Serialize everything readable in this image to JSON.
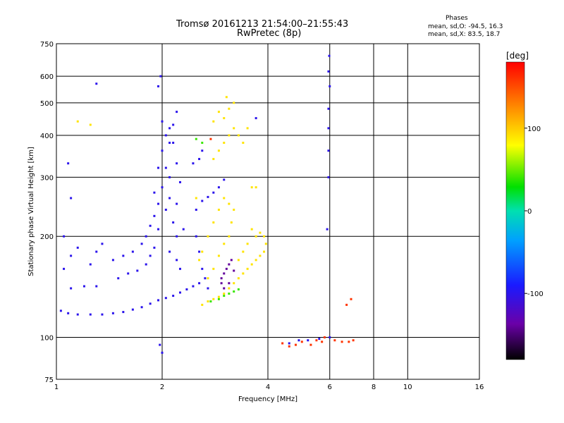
{
  "header": {
    "title_line1": "Tromsø 20161213 21:54:00–21:55:43",
    "title_line2": "RwPretec (8p)",
    "phases_title": "Phases",
    "stat_o": "mean, sd,O: -94.5, 16.3",
    "stat_x": "mean, sd,X:  83.5, 18.7"
  },
  "chart_data": {
    "type": "scatter",
    "title": "Tromsø 20161213 21:54:00–21:55:43",
    "subtitle": "RwPretec (8p)",
    "xlabel": "Frequency [MHz]",
    "ylabel": "Stationary phase Virtual Height [km]",
    "x_scale": "log",
    "y_scale": "log",
    "xlim": [
      1,
      16
    ],
    "ylim": [
      75,
      750
    ],
    "x_ticks": [
      1,
      2,
      4,
      6,
      8,
      10,
      16
    ],
    "x_tick_labels": [
      "1",
      "2",
      "4",
      "6",
      "8",
      "10",
      "16"
    ],
    "y_ticks": [
      75,
      100,
      200,
      300,
      400,
      500,
      600,
      750
    ],
    "y_tick_labels": [
      "75",
      "100",
      "200",
      "300",
      "400",
      "500",
      "600",
      "750"
    ],
    "grid": true,
    "colorbar": {
      "label": "[deg]",
      "range": [
        -180,
        180
      ],
      "ticks": [
        100,
        0,
        -100
      ],
      "tick_labels": [
        "100",
        "0",
        "-100"
      ]
    },
    "series": [
      {
        "phase_deg": -100,
        "points": [
          [
            1.03,
            120
          ],
          [
            1.08,
            118
          ],
          [
            1.15,
            117
          ],
          [
            1.25,
            117
          ],
          [
            1.35,
            117
          ],
          [
            1.45,
            118
          ],
          [
            1.55,
            119
          ],
          [
            1.65,
            121
          ],
          [
            1.75,
            123
          ],
          [
            1.85,
            126
          ],
          [
            1.95,
            129
          ],
          [
            2.05,
            131
          ],
          [
            2.15,
            133
          ],
          [
            2.25,
            136
          ],
          [
            2.35,
            139
          ],
          [
            2.45,
            142
          ],
          [
            2.55,
            145
          ],
          [
            1.1,
            140
          ],
          [
            1.2,
            142
          ],
          [
            1.3,
            142
          ],
          [
            1.5,
            150
          ],
          [
            1.6,
            155
          ],
          [
            1.7,
            158
          ],
          [
            1.8,
            165
          ],
          [
            1.85,
            175
          ],
          [
            1.9,
            185
          ],
          [
            1.05,
            160
          ],
          [
            1.1,
            175
          ],
          [
            1.15,
            185
          ],
          [
            1.25,
            165
          ],
          [
            1.3,
            180
          ],
          [
            1.35,
            190
          ],
          [
            1.45,
            170
          ],
          [
            1.55,
            175
          ],
          [
            1.65,
            180
          ],
          [
            1.75,
            190
          ],
          [
            1.8,
            200
          ],
          [
            1.85,
            215
          ],
          [
            1.05,
            200
          ],
          [
            1.1,
            260
          ],
          [
            1.08,
            330
          ],
          [
            1.3,
            570
          ],
          [
            1.95,
            560
          ],
          [
            1.98,
            600
          ],
          [
            2.0,
            440
          ],
          [
            1.9,
            230
          ],
          [
            1.95,
            250
          ],
          [
            2.0,
            280
          ],
          [
            2.05,
            320
          ],
          [
            2.1,
            380
          ],
          [
            2.15,
            430
          ],
          [
            2.2,
            470
          ],
          [
            1.9,
            270
          ],
          [
            1.95,
            320
          ],
          [
            2.0,
            360
          ],
          [
            2.05,
            400
          ],
          [
            2.1,
            420
          ],
          [
            2.15,
            380
          ],
          [
            2.2,
            330
          ],
          [
            2.25,
            290
          ],
          [
            2.1,
            260
          ],
          [
            2.15,
            220
          ],
          [
            2.2,
            200
          ],
          [
            2.1,
            180
          ],
          [
            2.2,
            170
          ],
          [
            2.25,
            160
          ],
          [
            1.95,
            210
          ],
          [
            2.05,
            240
          ],
          [
            2.1,
            300
          ],
          [
            2.2,
            250
          ],
          [
            2.3,
            210
          ],
          [
            2.5,
            240
          ],
          [
            2.6,
            255
          ],
          [
            2.7,
            262
          ],
          [
            2.8,
            270
          ],
          [
            2.9,
            280
          ],
          [
            3.0,
            295
          ],
          [
            2.55,
            340
          ],
          [
            2.6,
            360
          ],
          [
            2.45,
            330
          ],
          [
            2.5,
            200
          ],
          [
            2.55,
            180
          ],
          [
            2.6,
            160
          ],
          [
            2.65,
            150
          ],
          [
            2.7,
            140
          ],
          [
            1.97,
            95
          ],
          [
            2.0,
            90
          ],
          [
            3.7,
            450
          ],
          [
            4.6,
            96
          ],
          [
            4.9,
            98
          ],
          [
            5.2,
            98
          ],
          [
            5.6,
            99
          ],
          [
            5.95,
            300
          ],
          [
            5.95,
            360
          ],
          [
            5.95,
            420
          ],
          [
            5.95,
            480
          ],
          [
            6.0,
            560
          ],
          [
            5.95,
            620
          ],
          [
            5.98,
            690
          ],
          [
            6.0,
            100
          ],
          [
            5.9,
            210
          ]
        ]
      },
      {
        "phase_deg": -140,
        "points": [
          [
            2.95,
            150
          ],
          [
            3.0,
            155
          ],
          [
            3.05,
            160
          ],
          [
            3.1,
            165
          ],
          [
            3.15,
            170
          ],
          [
            3.2,
            158
          ],
          [
            3.1,
            145
          ],
          [
            3.0,
            140
          ],
          [
            2.95,
            145
          ]
        ]
      },
      {
        "phase_deg": 40,
        "points": [
          [
            2.9,
            130
          ],
          [
            3.0,
            133
          ],
          [
            3.1,
            135
          ],
          [
            3.2,
            137
          ],
          [
            3.3,
            139
          ],
          [
            2.75,
            128
          ],
          [
            2.5,
            390
          ],
          [
            2.6,
            380
          ]
        ]
      },
      {
        "phase_deg": 90,
        "points": [
          [
            2.6,
            125
          ],
          [
            2.7,
            128
          ],
          [
            2.8,
            130
          ],
          [
            2.9,
            132
          ],
          [
            3.0,
            135
          ],
          [
            3.1,
            140
          ],
          [
            3.2,
            145
          ],
          [
            3.3,
            150
          ],
          [
            3.4,
            155
          ],
          [
            3.5,
            160
          ],
          [
            3.6,
            165
          ],
          [
            3.7,
            170
          ],
          [
            3.8,
            175
          ],
          [
            3.9,
            180
          ],
          [
            3.95,
            190
          ],
          [
            3.9,
            200
          ],
          [
            3.8,
            205
          ],
          [
            3.7,
            200
          ],
          [
            3.6,
            210
          ],
          [
            3.5,
            190
          ],
          [
            3.4,
            180
          ],
          [
            3.3,
            170
          ],
          [
            2.7,
            150
          ],
          [
            2.8,
            160
          ],
          [
            2.9,
            175
          ],
          [
            3.0,
            190
          ],
          [
            3.1,
            200
          ],
          [
            3.15,
            220
          ],
          [
            3.2,
            240
          ],
          [
            3.1,
            250
          ],
          [
            3.0,
            260
          ],
          [
            2.9,
            240
          ],
          [
            2.8,
            220
          ],
          [
            2.7,
            200
          ],
          [
            2.6,
            180
          ],
          [
            2.55,
            170
          ],
          [
            2.8,
            340
          ],
          [
            2.9,
            360
          ],
          [
            3.0,
            380
          ],
          [
            3.1,
            400
          ],
          [
            3.2,
            420
          ],
          [
            3.3,
            400
          ],
          [
            3.4,
            380
          ],
          [
            3.5,
            420
          ],
          [
            3.0,
            450
          ],
          [
            3.1,
            480
          ],
          [
            3.2,
            500
          ],
          [
            3.05,
            520
          ],
          [
            2.9,
            470
          ],
          [
            2.8,
            440
          ],
          [
            2.5,
            260
          ],
          [
            3.6,
            280
          ],
          [
            3.7,
            280
          ],
          [
            1.25,
            430
          ],
          [
            1.15,
            440
          ]
        ]
      },
      {
        "phase_deg": 160,
        "points": [
          [
            4.4,
            96
          ],
          [
            4.6,
            94
          ],
          [
            4.8,
            95
          ],
          [
            5.0,
            97
          ],
          [
            5.5,
            98
          ],
          [
            5.7,
            97
          ],
          [
            6.2,
            98
          ],
          [
            6.5,
            97
          ],
          [
            6.8,
            97
          ],
          [
            7.0,
            98
          ],
          [
            5.3,
            95
          ],
          [
            5.8,
            100
          ],
          [
            6.9,
            130
          ],
          [
            6.7,
            125
          ],
          [
            2.75,
            390
          ]
        ]
      }
    ]
  }
}
